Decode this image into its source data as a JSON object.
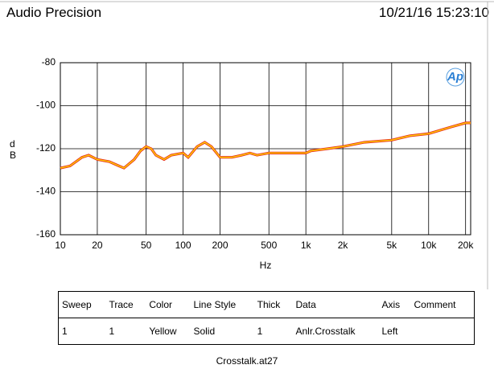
{
  "header": {
    "title": "Audio Precision",
    "timestamp": "10/21/16 15:23:10"
  },
  "chart_data": {
    "type": "line",
    "logo": "Ap",
    "xlabel": "Hz",
    "ylabel": "dB",
    "x": [
      10,
      12,
      15,
      17,
      20,
      25,
      30,
      33,
      40,
      45,
      50,
      55,
      60,
      70,
      80,
      100,
      110,
      130,
      150,
      170,
      200,
      250,
      300,
      350,
      400,
      500,
      700,
      1000,
      1100,
      1500,
      2000,
      3000,
      5000,
      7000,
      10000,
      15000,
      20000,
      22000
    ],
    "series": [
      {
        "name": "Yellow",
        "color": "#ffd200",
        "edgecolor": "#e8301c",
        "values": [
          -129,
          -128,
          -124,
          -123,
          -125,
          -126,
          -128,
          -129,
          -125,
          -121,
          -119,
          -120,
          -123,
          -125,
          -123,
          -122,
          -124,
          -119,
          -117,
          -119,
          -124,
          -124,
          -123,
          -122,
          -123,
          -122,
          -122,
          -122,
          -121,
          -120,
          -119,
          -117,
          -116,
          -114,
          -113,
          -110,
          -108,
          -108
        ]
      }
    ],
    "xscale": "log",
    "xlim": [
      10,
      22000
    ],
    "xticks": [
      10,
      20,
      50,
      100,
      200,
      500,
      {
        "value": 1000,
        "label": "1k"
      },
      {
        "value": 2000,
        "label": "2k"
      },
      {
        "value": 5000,
        "label": "5k"
      },
      {
        "value": 10000,
        "label": "10k"
      },
      {
        "value": 20000,
        "label": "20k"
      }
    ],
    "ylim": [
      -160,
      -80
    ],
    "yticks": [
      -80,
      -100,
      -120,
      -140,
      -160
    ],
    "grid": true
  },
  "table": {
    "headers": [
      "Sweep",
      "Trace",
      "Color",
      "Line Style",
      "Thick",
      "Data",
      "Axis",
      "Comment"
    ],
    "rows": [
      [
        "1",
        "1",
        "Yellow",
        "Solid",
        "1",
        "Anlr.Crosstalk",
        "Left",
        ""
      ]
    ]
  },
  "footer": "Crosstalk.at27"
}
